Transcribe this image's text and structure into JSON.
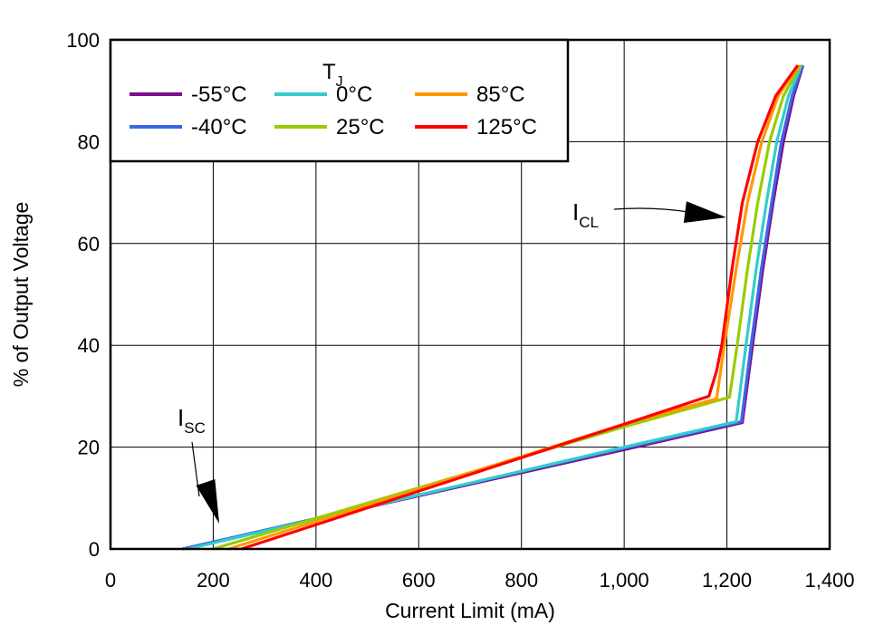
{
  "chart_data": {
    "type": "line",
    "xlabel": "Current Limit (mA)",
    "ylabel": "% of Output Voltage",
    "xlim": [
      0,
      1400
    ],
    "ylim": [
      0,
      100
    ],
    "x_ticks": [
      0,
      200,
      400,
      600,
      800,
      1000,
      1200,
      1400
    ],
    "x_tick_labels": [
      "0",
      "200",
      "400",
      "600",
      "800",
      "1,000",
      "1,200",
      "1,400"
    ],
    "y_ticks": [
      0,
      20,
      40,
      60,
      80,
      100
    ],
    "y_tick_labels": [
      "0",
      "20",
      "40",
      "60",
      "80",
      "100"
    ],
    "grid": true,
    "legend": {
      "title_main": "T",
      "title_sub": "J",
      "placement": "top-left",
      "entries": [
        {
          "label": "-55°C",
          "color": "#7B0F8F"
        },
        {
          "label": "-40°C",
          "color": "#3D66E6"
        },
        {
          "label": "0°C",
          "color": "#33CCCC"
        },
        {
          "label": "25°C",
          "color": "#99CC00"
        },
        {
          "label": "85°C",
          "color": "#FF9900"
        },
        {
          "label": "125°C",
          "color": "#FF0000"
        }
      ]
    },
    "series": [
      {
        "name": "-55°C",
        "color": "#7B0F8F",
        "points": [
          [
            140,
            0
          ],
          [
            1000,
            19.5
          ],
          [
            1230,
            24.8
          ],
          [
            1250,
            40
          ],
          [
            1270,
            55
          ],
          [
            1290,
            68
          ],
          [
            1310,
            80
          ],
          [
            1330,
            89
          ],
          [
            1348,
            95
          ]
        ]
      },
      {
        "name": "-40°C",
        "color": "#3D66E6",
        "points": [
          [
            140,
            0
          ],
          [
            1000,
            19.8
          ],
          [
            1228,
            25
          ],
          [
            1247,
            40
          ],
          [
            1267,
            55
          ],
          [
            1287,
            68
          ],
          [
            1306,
            80
          ],
          [
            1327,
            89
          ],
          [
            1347,
            95
          ]
        ]
      },
      {
        "name": "0°C",
        "color": "#33CCCC",
        "points": [
          [
            150,
            0
          ],
          [
            1000,
            20
          ],
          [
            1218,
            25
          ],
          [
            1237,
            40
          ],
          [
            1257,
            55
          ],
          [
            1277,
            68
          ],
          [
            1297,
            80
          ],
          [
            1320,
            89
          ],
          [
            1345,
            95
          ]
        ]
      },
      {
        "name": "25°C",
        "color": "#99CC00",
        "points": [
          [
            200,
            0
          ],
          [
            1000,
            24
          ],
          [
            1205,
            29.8
          ],
          [
            1220,
            40
          ],
          [
            1240,
            55
          ],
          [
            1260,
            68
          ],
          [
            1283,
            80
          ],
          [
            1310,
            89
          ],
          [
            1343,
            95
          ]
        ]
      },
      {
        "name": "85°C",
        "color": "#FF9900",
        "points": [
          [
            230,
            0
          ],
          [
            1000,
            24.5
          ],
          [
            1180,
            29.5
          ],
          [
            1195,
            40
          ],
          [
            1218,
            55
          ],
          [
            1240,
            68
          ],
          [
            1268,
            80
          ],
          [
            1300,
            89
          ],
          [
            1340,
            95
          ]
        ]
      },
      {
        "name": "125°C",
        "color": "#FF0000",
        "points": [
          [
            255,
            0
          ],
          [
            1000,
            24.5
          ],
          [
            1165,
            30
          ],
          [
            1180,
            35
          ],
          [
            1190,
            40
          ],
          [
            1210,
            55
          ],
          [
            1230,
            68
          ],
          [
            1260,
            80
          ],
          [
            1295,
            89
          ],
          [
            1338,
            95
          ]
        ]
      }
    ],
    "annotations": [
      {
        "main": "I",
        "sub": "SC",
        "target": [
          180,
          5
        ]
      },
      {
        "main": "I",
        "sub": "CL",
        "target": [
          1200,
          64
        ]
      }
    ]
  }
}
